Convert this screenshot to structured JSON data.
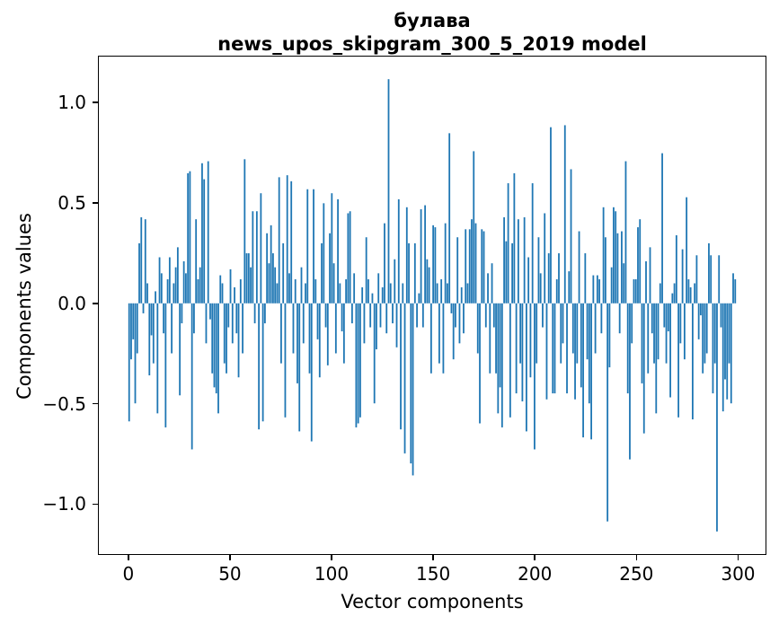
{
  "figure": {
    "title_line1": "булава",
    "title_line2": "news_upos_skipgram_300_5_2019 model",
    "xlabel": "Vector components",
    "ylabel": "Components values"
  },
  "chart_data": {
    "type": "bar",
    "title": "булава — news_upos_skipgram_300_5_2019 model",
    "xlabel": "Vector components",
    "ylabel": "Components values",
    "n_components": 300,
    "bar_color": "#1f77b4",
    "background_color": "#ffffff",
    "grid": false,
    "legend": false,
    "bar_width": 0.8,
    "xlim": [
      -14.95,
      313.95
    ],
    "ylim": [
      -1.253,
      1.233
    ],
    "x_ticks": {
      "values": [
        0,
        50,
        100,
        150,
        200,
        250,
        300
      ],
      "labels": [
        "0",
        "50",
        "100",
        "150",
        "200",
        "250",
        "300"
      ]
    },
    "y_ticks": {
      "values": [
        1.0,
        0.5,
        0.0,
        -0.5,
        -1.0
      ],
      "labels": [
        "1.0",
        "0.5",
        "0.0",
        "−0.5",
        "−1.0"
      ]
    },
    "values": [
      -0.59,
      -0.28,
      -0.18,
      -0.5,
      -0.25,
      0.3,
      0.43,
      -0.05,
      0.42,
      0.1,
      -0.36,
      -0.16,
      -0.3,
      0.06,
      -0.55,
      0.23,
      0.15,
      -0.15,
      -0.62,
      0.12,
      0.23,
      -0.25,
      0.1,
      0.18,
      0.28,
      -0.46,
      -0.1,
      0.21,
      0.15,
      0.65,
      0.66,
      -0.73,
      -0.15,
      0.42,
      0.12,
      0.18,
      0.7,
      0.62,
      -0.2,
      0.71,
      -0.08,
      -0.35,
      -0.42,
      -0.45,
      -0.55,
      0.14,
      0.1,
      -0.3,
      -0.35,
      -0.12,
      0.17,
      -0.2,
      0.08,
      -0.15,
      -0.37,
      0.12,
      -0.25,
      0.72,
      0.25,
      0.25,
      0.18,
      0.46,
      -0.1,
      0.46,
      -0.63,
      0.55,
      -0.59,
      -0.1,
      0.35,
      0.2,
      0.39,
      0.25,
      0.18,
      0.1,
      0.63,
      -0.3,
      0.3,
      -0.57,
      0.64,
      0.15,
      0.61,
      -0.25,
      0.12,
      -0.4,
      -0.64,
      0.18,
      -0.2,
      0.1,
      0.57,
      -0.35,
      -0.69,
      0.57,
      0.12,
      -0.18,
      -0.37,
      0.3,
      0.5,
      -0.12,
      -0.31,
      0.35,
      0.55,
      0.2,
      -0.25,
      0.52,
      0.1,
      -0.14,
      -0.3,
      0.12,
      0.45,
      0.46,
      -0.1,
      0.15,
      -0.62,
      -0.6,
      -0.57,
      0.08,
      -0.2,
      0.33,
      0.12,
      -0.12,
      0.05,
      -0.5,
      -0.23,
      0.15,
      -0.12,
      0.08,
      0.4,
      -0.15,
      1.12,
      0.1,
      -0.1,
      0.22,
      -0.22,
      0.52,
      -0.63,
      0.1,
      -0.75,
      0.48,
      0.3,
      -0.8,
      -0.86,
      0.3,
      -0.12,
      0.05,
      0.47,
      -0.12,
      0.49,
      0.22,
      0.18,
      -0.35,
      0.39,
      0.38,
      0.1,
      -0.3,
      0.12,
      -0.35,
      0.4,
      0.1,
      0.85,
      -0.05,
      -0.28,
      -0.12,
      0.33,
      -0.2,
      0.08,
      -0.15,
      0.37,
      0.1,
      0.37,
      0.42,
      0.76,
      0.4,
      -0.25,
      -0.6,
      0.37,
      0.36,
      -0.12,
      0.15,
      -0.35,
      0.2,
      -0.12,
      -0.35,
      -0.55,
      -0.42,
      -0.62,
      0.43,
      0.31,
      0.6,
      -0.57,
      0.3,
      0.65,
      -0.45,
      0.42,
      -0.3,
      -0.49,
      0.43,
      -0.64,
      0.23,
      -0.37,
      0.6,
      -0.73,
      -0.3,
      0.33,
      0.15,
      -0.12,
      0.45,
      -0.48,
      0.25,
      0.88,
      -0.45,
      -0.45,
      0.12,
      0.25,
      -0.3,
      -0.2,
      0.89,
      -0.45,
      0.16,
      0.67,
      -0.25,
      -0.48,
      -0.3,
      0.36,
      -0.42,
      -0.67,
      0.25,
      -0.28,
      -0.5,
      -0.68,
      0.14,
      -0.25,
      0.14,
      0.12,
      -0.15,
      0.48,
      0.33,
      -1.09,
      -0.32,
      0.18,
      0.48,
      0.46,
      0.35,
      -0.15,
      0.36,
      0.2,
      0.71,
      -0.45,
      -0.78,
      -0.2,
      0.12,
      0.12,
      0.38,
      0.42,
      -0.4,
      -0.65,
      0.21,
      -0.35,
      0.28,
      -0.15,
      -0.3,
      -0.55,
      -0.28,
      0.1,
      0.75,
      -0.12,
      -0.3,
      -0.14,
      -0.47,
      0.05,
      0.1,
      0.34,
      -0.57,
      -0.2,
      0.27,
      -0.28,
      0.53,
      0.12,
      0.08,
      -0.58,
      0.1,
      0.24,
      -0.18,
      -0.06,
      -0.35,
      -0.3,
      -0.25,
      0.3,
      0.24,
      -0.45,
      -0.3,
      -1.14,
      0.24,
      -0.12,
      -0.54,
      -0.38,
      -0.48,
      -0.3,
      -0.5,
      0.15,
      0.12
    ]
  }
}
